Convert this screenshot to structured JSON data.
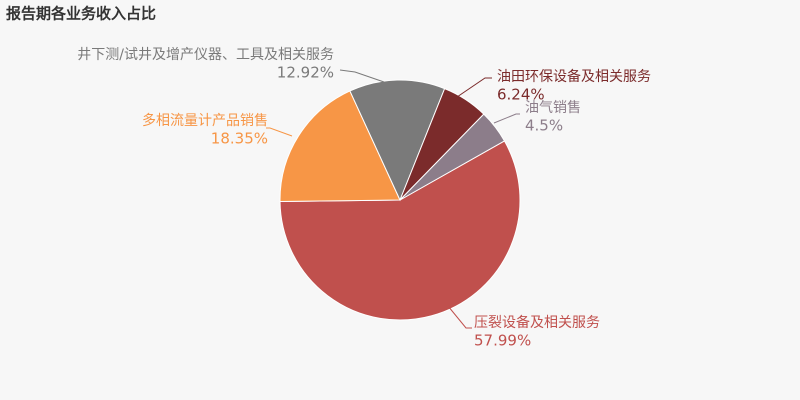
{
  "chart_data": {
    "type": "pie",
    "title": "报告期各业务收入占比",
    "categories": [
      "压裂设备及相关服务",
      "多相流量计产品销售",
      "井下测/试井及增产仪器、工具及相关服务",
      "油田环保设备及相关服务",
      "油气销售"
    ],
    "values": [
      57.99,
      18.35,
      12.92,
      6.24,
      4.5
    ],
    "value_labels": [
      "57.99%",
      "18.35%",
      "12.92%",
      "6.24%",
      "4.5%"
    ],
    "colors": [
      "#c0504d",
      "#f79646",
      "#7a7a7a",
      "#7b2b2b",
      "#8c7d8a"
    ]
  }
}
